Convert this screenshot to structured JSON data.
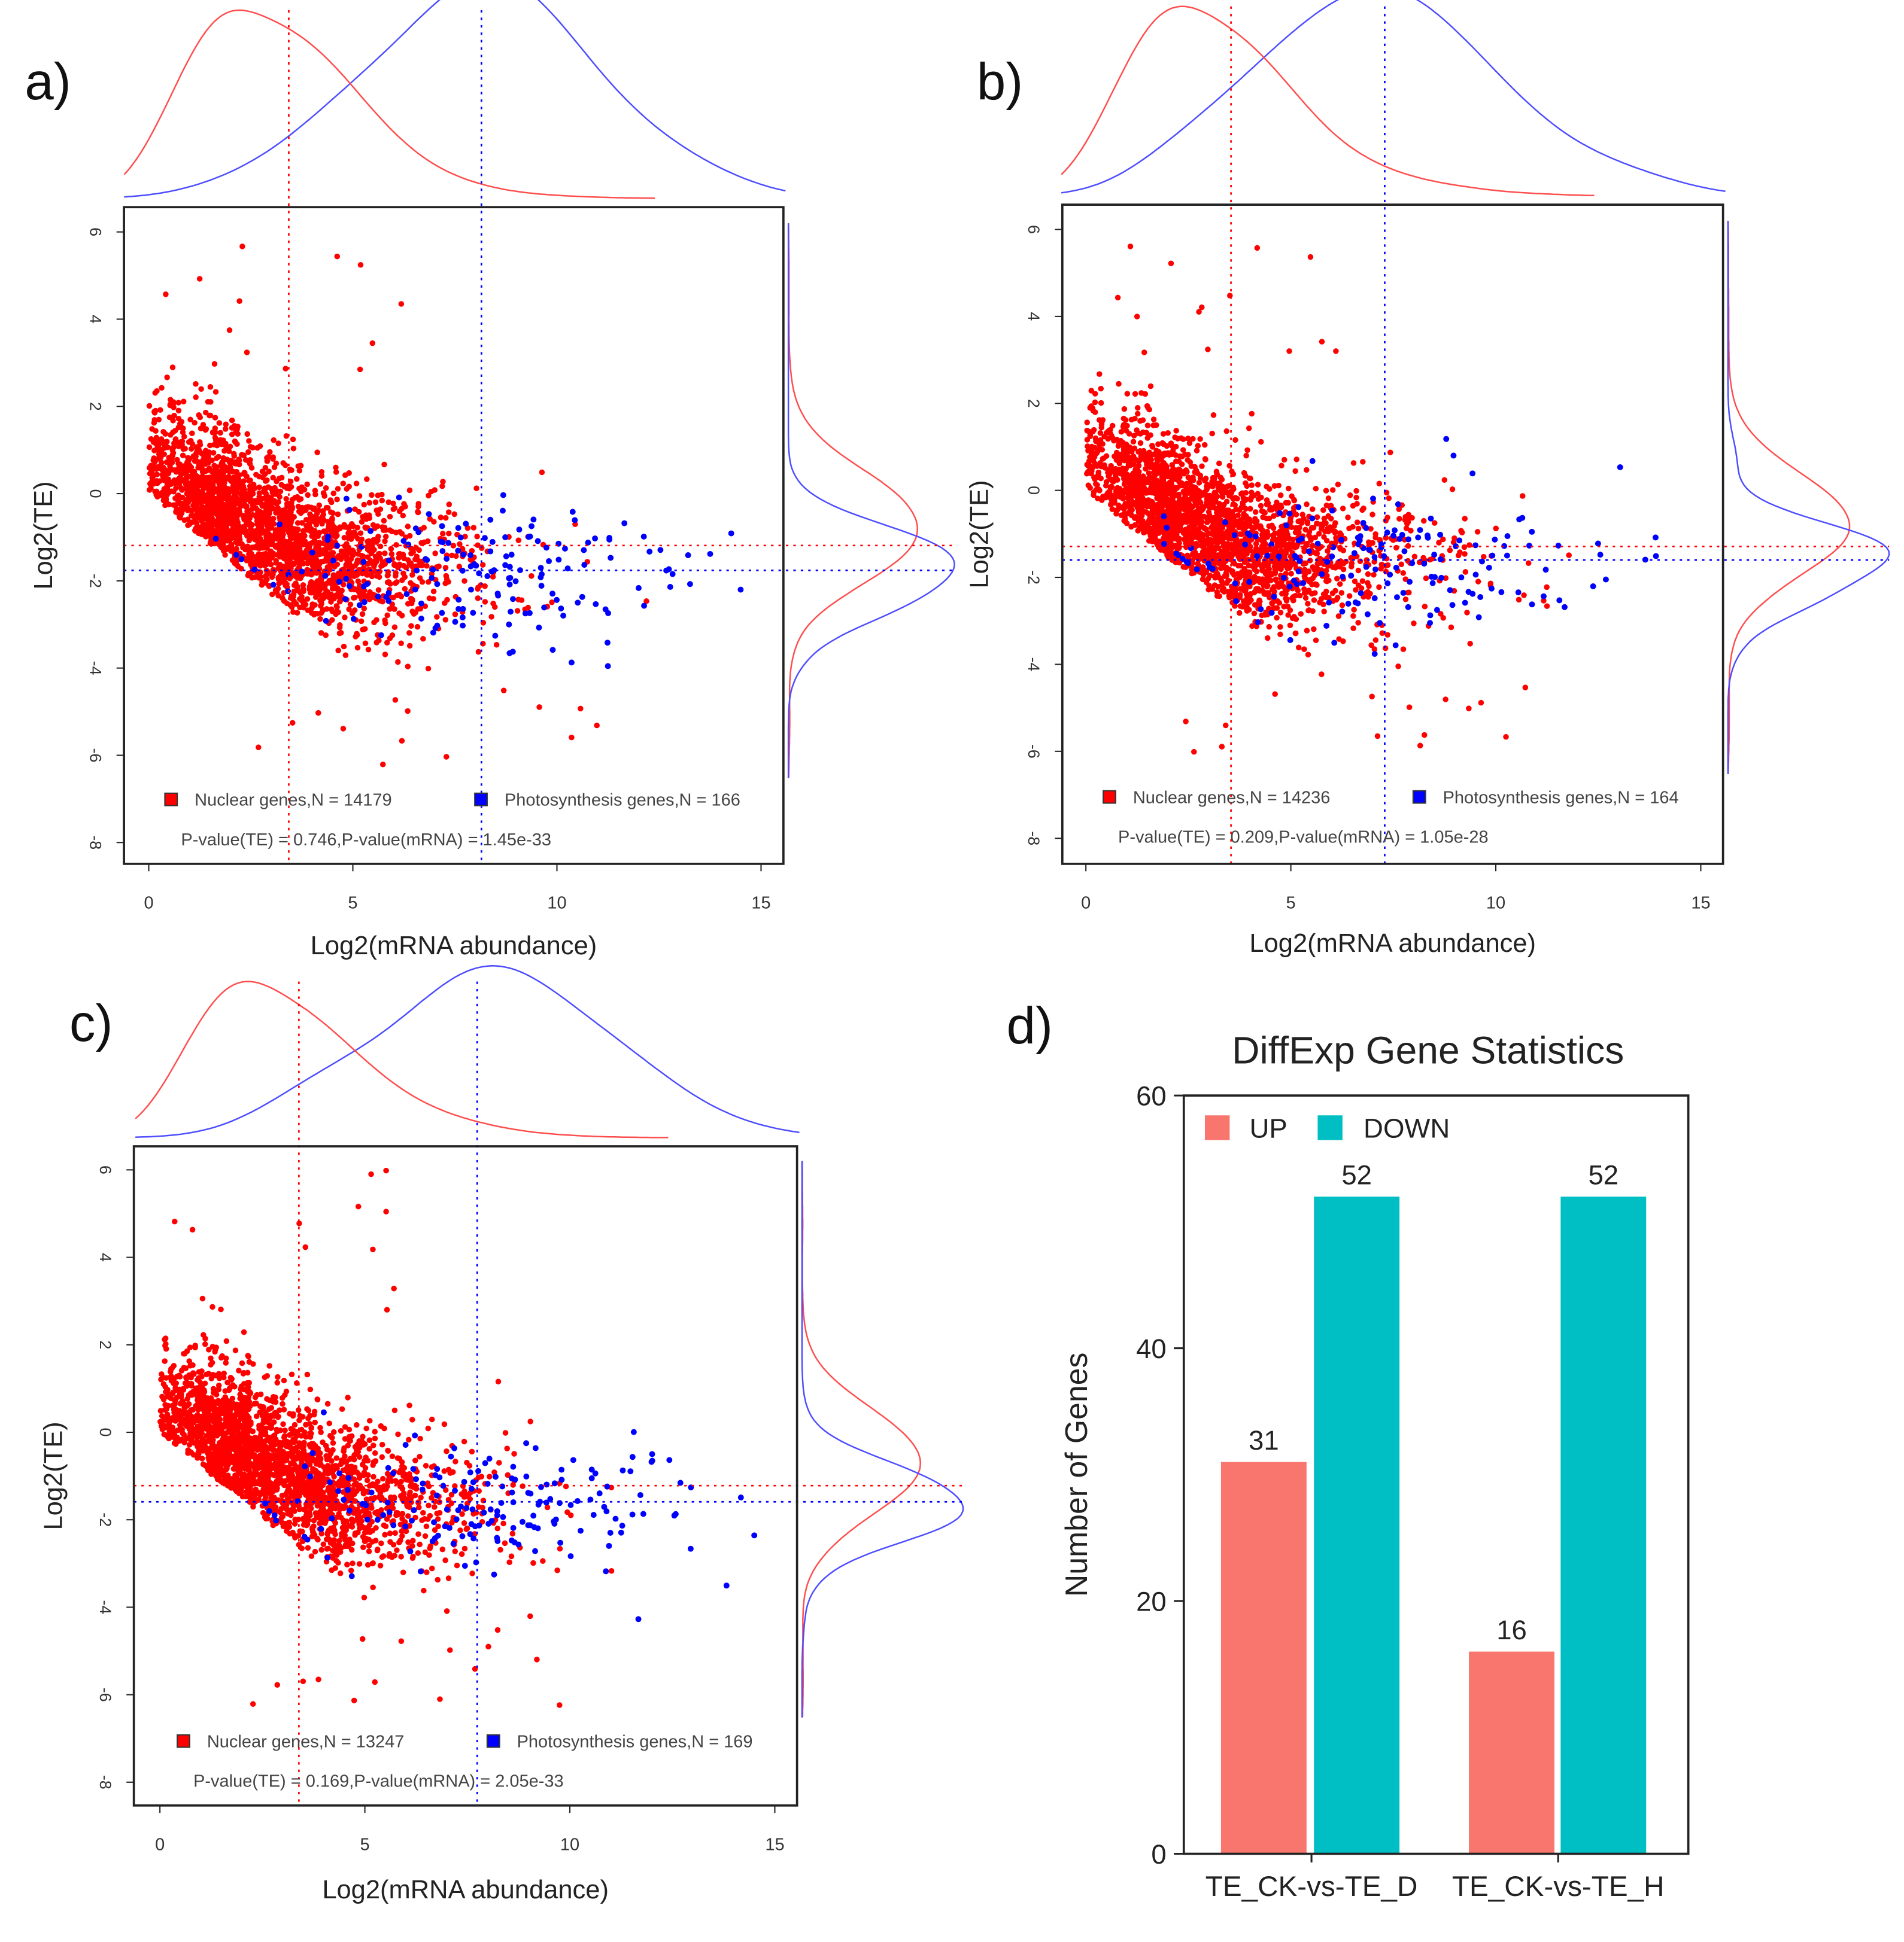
{
  "chart_data": [
    {
      "type": "scatter",
      "panel_label": "a)",
      "xlabel": "Log2(mRNA abundance)",
      "ylabel": "Log2(TE)",
      "xlim": [
        0,
        15
      ],
      "ylim": [
        -8,
        6
      ],
      "xticks": [
        "0",
        "5",
        "10",
        "15"
      ],
      "yticks": [
        "-8",
        "-6",
        "-4",
        "-2",
        "0",
        "2",
        "4",
        "6"
      ],
      "series": [
        {
          "name": "Nuclear genes",
          "legend": "Nuclear genes,N = 14179",
          "n": 14179,
          "color": "#ff0000",
          "median_x": 3.43,
          "median_y": -1.19
        },
        {
          "name": "Photosynthesis genes",
          "legend": "Photosynthesis genes,N = 166",
          "n": 166,
          "color": "#0000ff",
          "median_x": 8.15,
          "median_y": -1.76
        }
      ],
      "pvalue_text": "P-value(TE) = 0.746,P-value(mRNA) = 1.45e-33"
    },
    {
      "type": "scatter",
      "panel_label": "b)",
      "xlabel": "Log2(mRNA abundance)",
      "ylabel": "Log2(TE)",
      "xlim": [
        0,
        15
      ],
      "ylim": [
        -8,
        6
      ],
      "xticks": [
        "0",
        "5",
        "10",
        "15"
      ],
      "yticks": [
        "-8",
        "-6",
        "-4",
        "-2",
        "0",
        "2",
        "4",
        "6"
      ],
      "series": [
        {
          "name": "Nuclear genes",
          "legend": "Nuclear genes,N = 14236",
          "n": 14236,
          "color": "#ff0000",
          "median_x": 3.54,
          "median_y": -1.29
        },
        {
          "name": "Photosynthesis genes",
          "legend": "Photosynthesis genes,N = 164",
          "n": 164,
          "color": "#0000ff",
          "median_x": 7.29,
          "median_y": -1.6
        }
      ],
      "pvalue_text": "P-value(TE) = 0.209,P-value(mRNA) = 1.05e-28"
    },
    {
      "type": "scatter",
      "panel_label": "c)",
      "xlabel": "Log2(mRNA abundance)",
      "ylabel": "Log2(TE)",
      "xlim": [
        0,
        15
      ],
      "ylim": [
        -8,
        6
      ],
      "xticks": [
        "0",
        "5",
        "10",
        "15"
      ],
      "yticks": [
        "-8",
        "-6",
        "-4",
        "-2",
        "0",
        "2",
        "4",
        "6"
      ],
      "series": [
        {
          "name": "Nuclear genes",
          "legend": "Nuclear genes,N = 13247",
          "n": 13247,
          "color": "#ff0000",
          "median_x": 3.39,
          "median_y": -1.22
        },
        {
          "name": "Photosynthesis genes",
          "legend": "Photosynthesis genes,N = 169",
          "n": 169,
          "color": "#0000ff",
          "median_x": 7.74,
          "median_y": -1.59
        }
      ],
      "pvalue_text": "P-value(TE) = 0.169,P-value(mRNA) = 2.05e-33"
    },
    {
      "type": "bar",
      "panel_label": "d)",
      "title": "DiffExp Gene Statistics",
      "xlabel": "",
      "ylabel": "Number of Genes",
      "categories": [
        "TE_CK-vs-TE_D",
        "TE_CK-vs-TE_H"
      ],
      "series": [
        {
          "name": "UP",
          "values": [
            31,
            16
          ],
          "labels": [
            "31",
            "16"
          ],
          "color": "#f8766d"
        },
        {
          "name": "DOWN",
          "values": [
            52,
            52
          ],
          "labels": [
            "52",
            "52"
          ],
          "color": "#00bfc4"
        }
      ],
      "ylim": [
        0,
        60
      ],
      "yticks": [
        "0",
        "20",
        "40",
        "60"
      ],
      "legend": "top-left"
    }
  ]
}
